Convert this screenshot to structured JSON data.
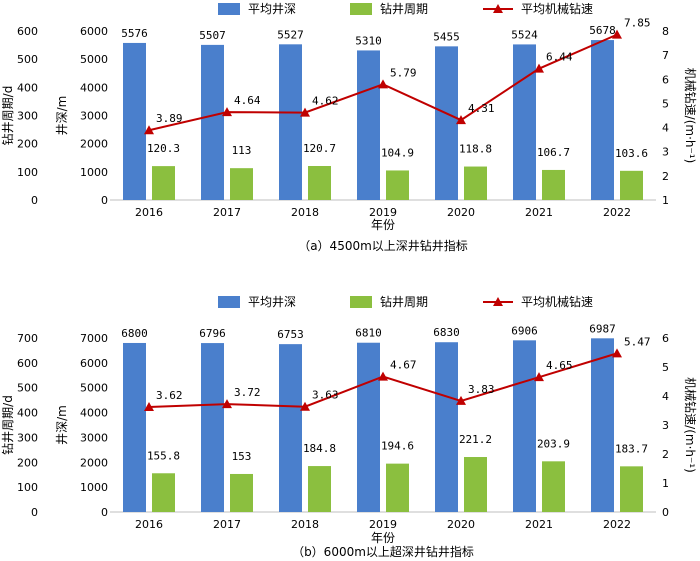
{
  "colors": {
    "depth_bar": "#4a7fcc",
    "cycle_bar": "#8bbf3f",
    "rop_line": "#c00000"
  },
  "chart_data": [
    {
      "type": "bar",
      "caption": "（a）4500m以上深井钻井指标",
      "categories": [
        "2016",
        "2017",
        "2018",
        "2019",
        "2020",
        "2021",
        "2022"
      ],
      "xlabel": "年份",
      "y_depth_label": "井深/m",
      "y_cycle_label": "钻井周期/d",
      "y_rop_label": "机械钻速/(m·h⁻¹)",
      "legend": [
        "平均井深",
        "钻井周期",
        "平均机械钻速"
      ],
      "legend_position": "top",
      "depth_ticks": [
        "0",
        "1000",
        "2000",
        "3000",
        "4000",
        "5000",
        "6000"
      ],
      "cycle_ticks": [
        "0",
        "100",
        "200",
        "300",
        "400",
        "500",
        "600"
      ],
      "rop_ticks": [
        "1",
        "2",
        "3",
        "4",
        "5",
        "6",
        "7",
        "8"
      ],
      "depth_range": [
        0,
        6000
      ],
      "rop_range": [
        1,
        8
      ],
      "series": [
        {
          "name": "平均井深",
          "axis": "depth",
          "values": [
            5576,
            5507,
            5527,
            5310,
            5455,
            5524,
            5678
          ]
        },
        {
          "name": "钻井周期",
          "axis": "cycle",
          "values": [
            120.3,
            113,
            120.7,
            104.9,
            118.8,
            106.7,
            103.6
          ]
        },
        {
          "name": "平均机械钻速",
          "axis": "rop",
          "values": [
            3.89,
            4.64,
            4.62,
            5.79,
            4.31,
            6.44,
            7.85
          ]
        }
      ]
    },
    {
      "type": "bar",
      "caption": "（b）6000m以上超深井钻井指标",
      "categories": [
        "2016",
        "2017",
        "2018",
        "2019",
        "2020",
        "2021",
        "2022"
      ],
      "xlabel": "年份",
      "y_depth_label": "井深/m",
      "y_cycle_label": "钻井周期/d",
      "y_rop_label": "机械钻速/(m·h⁻¹)",
      "legend": [
        "平均井深",
        "钻井周期",
        "平均机械钻速"
      ],
      "legend_position": "top",
      "depth_ticks": [
        "0",
        "1000",
        "2000",
        "3000",
        "4000",
        "5000",
        "6000",
        "7000"
      ],
      "cycle_ticks": [
        "0",
        "100",
        "200",
        "300",
        "400",
        "500",
        "600",
        "700"
      ],
      "rop_ticks": [
        "0",
        "1",
        "2",
        "3",
        "4",
        "5",
        "6"
      ],
      "depth_range": [
        0,
        7000
      ],
      "rop_range": [
        0,
        6
      ],
      "series": [
        {
          "name": "平均井深",
          "axis": "depth",
          "values": [
            6800,
            6796,
            6753,
            6810,
            6830,
            6906,
            6987
          ]
        },
        {
          "name": "钻井周期",
          "axis": "cycle",
          "values": [
            155.8,
            153,
            184.8,
            194.6,
            221.2,
            203.9,
            183.7
          ]
        },
        {
          "name": "平均机械钻速",
          "axis": "rop",
          "values": [
            3.62,
            3.72,
            3.63,
            4.67,
            3.83,
            4.65,
            5.47
          ]
        }
      ]
    }
  ]
}
